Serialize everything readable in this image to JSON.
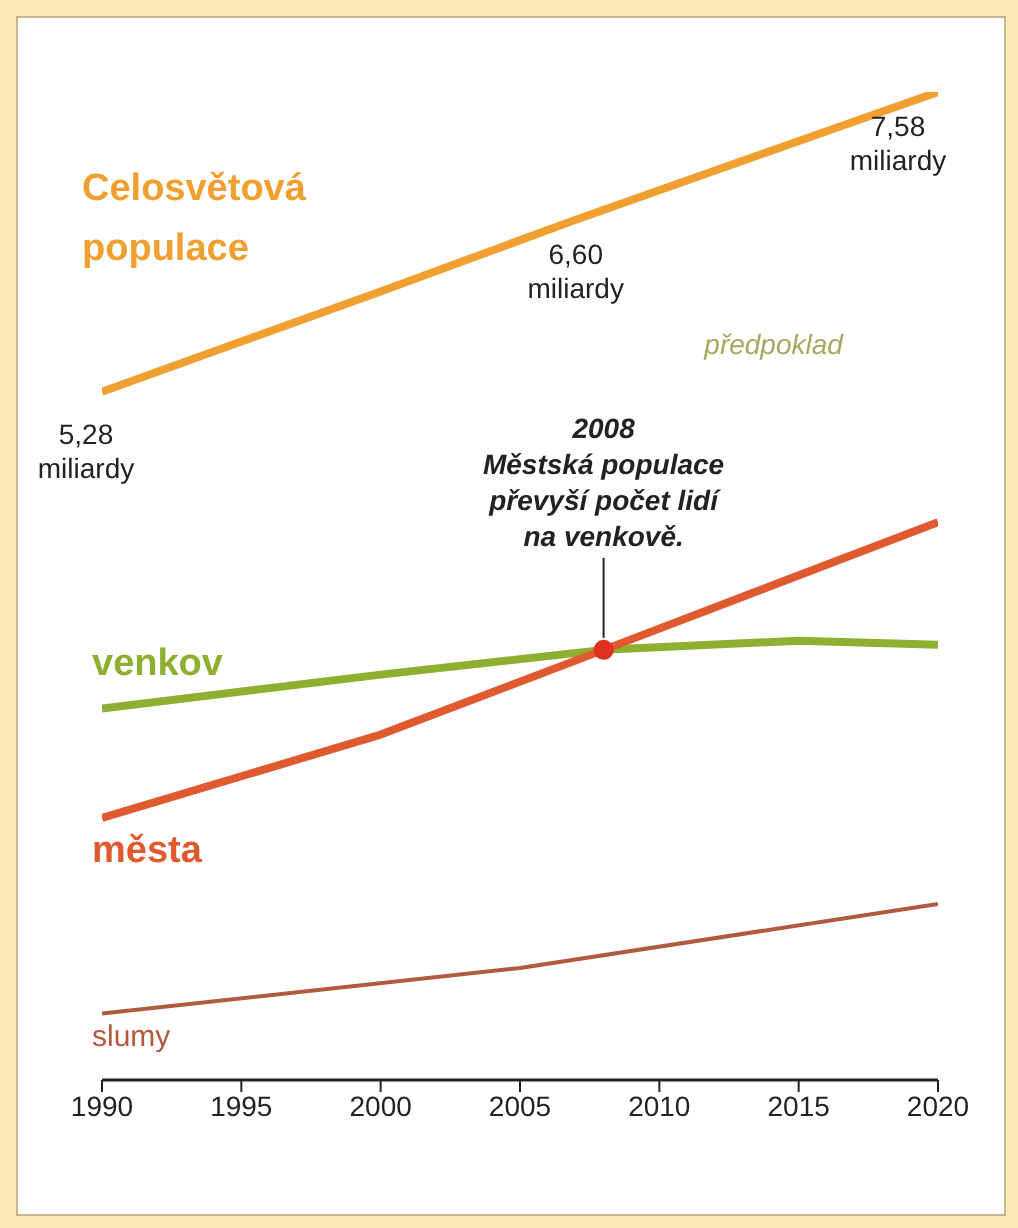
{
  "chart_data": {
    "type": "line",
    "xlim": [
      1990,
      2020
    ],
    "xticks": [
      1990,
      1995,
      2000,
      2005,
      2010,
      2015,
      2020
    ],
    "marker": "none",
    "line_style": "solid",
    "series": [
      {
        "name": "Celosvětová populace",
        "color": "#f0a030",
        "x": [
          1990,
          2000,
          2007,
          2020
        ],
        "values": [
          5.28,
          6.05,
          6.6,
          7.58
        ],
        "value_labels": [
          "5,28 miliardy",
          null,
          "6,60 miliardy",
          "7,58 miliardy"
        ]
      },
      {
        "name": "venkov",
        "color": "#8db030",
        "x": [
          1990,
          2000,
          2008,
          2015,
          2020
        ],
        "values": [
          2.85,
          3.11,
          3.3,
          3.37,
          3.34
        ]
      },
      {
        "name": "města",
        "color": "#e05a30",
        "x": [
          1990,
          2000,
          2008,
          2020
        ],
        "values": [
          2.01,
          2.65,
          3.3,
          4.28
        ]
      },
      {
        "name": "slumy",
        "color": "#b05a40",
        "x": [
          1990,
          2005,
          2020
        ],
        "values": [
          0.51,
          0.86,
          1.35
        ]
      }
    ],
    "annotations": [
      {
        "text": "2008 Městská populace převyší počet lidí na venkově.",
        "x": 2008,
        "y": 3.3
      },
      "předpoklad"
    ]
  }
}
